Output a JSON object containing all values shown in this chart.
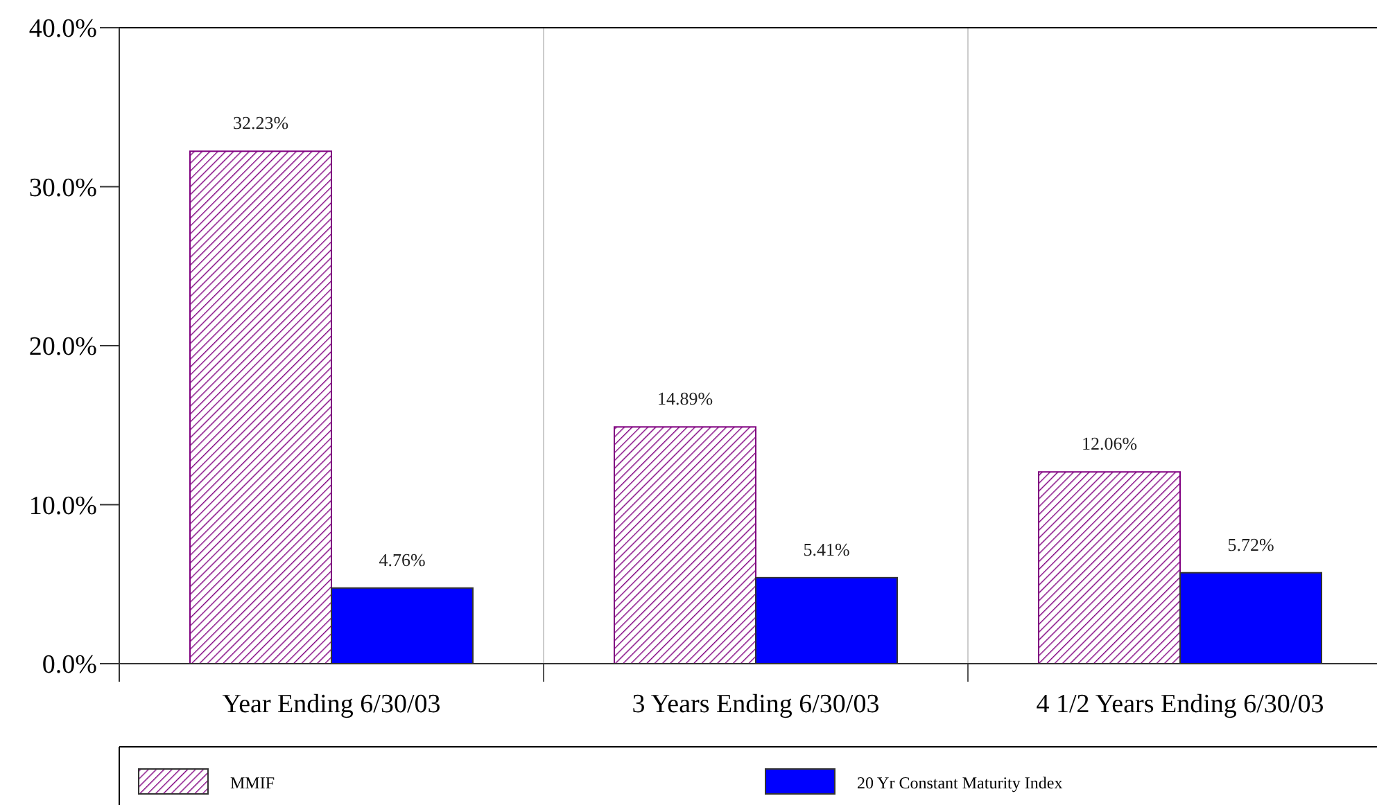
{
  "chart_data": {
    "type": "bar",
    "categories": [
      "Year Ending 6/30/03",
      "3 Years Ending 6/30/03",
      "4 1/2 Years Ending 6/30/03"
    ],
    "series": [
      {
        "name": "MMIF",
        "color": "#800080",
        "values": [
          32.23,
          14.89,
          12.06
        ],
        "value_labels": [
          "32.23%",
          "14.89%",
          "12.06%"
        ]
      },
      {
        "name": "20 Yr Constant Maturity Index",
        "color": "#0000ff",
        "values": [
          4.76,
          5.41,
          5.72
        ],
        "value_labels": [
          "4.76%",
          "5.41%",
          "5.72%"
        ]
      }
    ],
    "ylim": [
      0,
      40
    ],
    "yticks": [
      {
        "value": 0,
        "label": "0.0%"
      },
      {
        "value": 10,
        "label": "10.0%"
      },
      {
        "value": 20,
        "label": "20.0%"
      },
      {
        "value": 30,
        "label": "30.0%"
      },
      {
        "value": 40,
        "label": "40.0%"
      }
    ],
    "legend": "bottom"
  }
}
